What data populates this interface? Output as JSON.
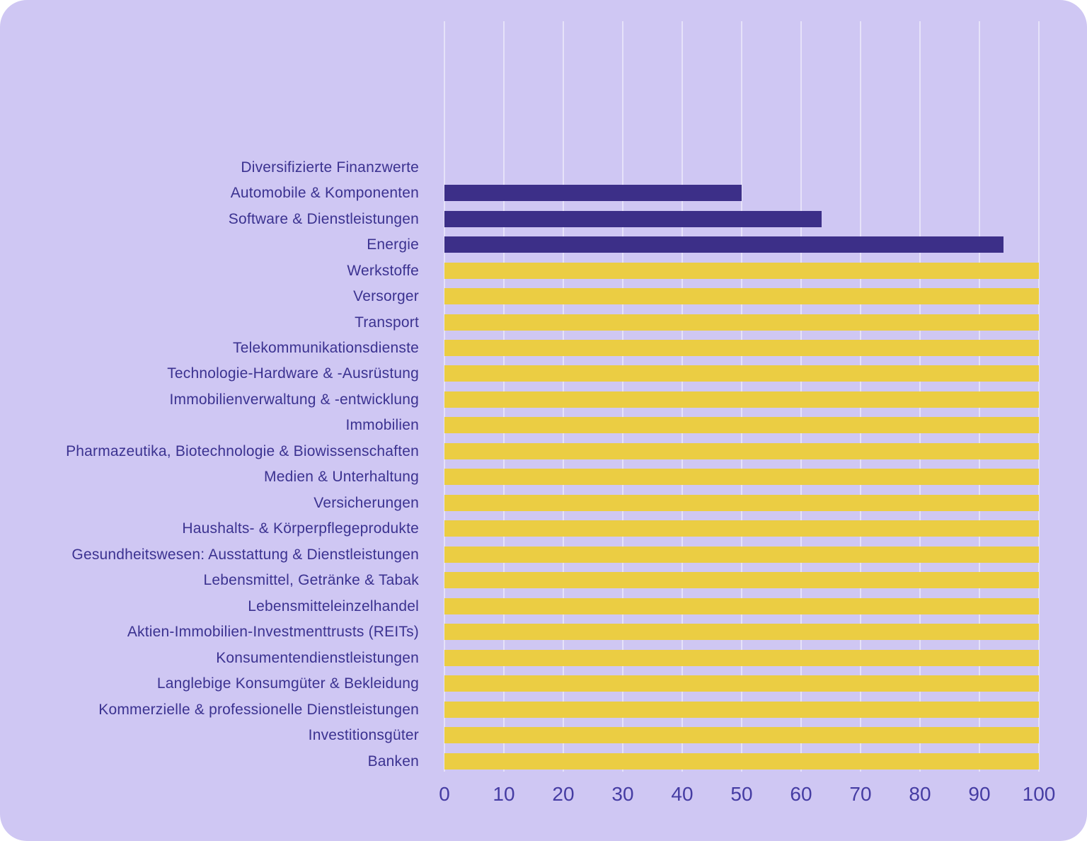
{
  "colors": {
    "page_background": "#FFFFFF",
    "panel_background": "#CFC7F3",
    "gridline": "rgba(255,255,255,0.48)",
    "bar_purple": "#3C2F88",
    "bar_yellow": "#EBCD43",
    "category_label_text": "#3B3290",
    "tick_label_text": "#453CA3"
  },
  "chart_data": {
    "type": "bar",
    "orientation": "horizontal",
    "title": "",
    "xlabel": "",
    "ylabel": "",
    "xlim": [
      0,
      100
    ],
    "x_ticks": [
      "0",
      "10",
      "20",
      "30",
      "40",
      "50",
      "60",
      "70",
      "80",
      "90",
      "100"
    ],
    "grid": true,
    "legend": false,
    "categories": [
      "Diversifizierte Finanzwerte",
      "Automobile & Komponenten",
      "Software & Dienstleistungen",
      "Energie",
      "Werkstoffe",
      "Versorger",
      "Transport",
      "Telekommunikationsdienste",
      "Technologie-Hardware & -Ausrüstung",
      "Immobilienverwaltung & -entwicklung",
      "Immobilien",
      "Pharmazeutika, Biotechnologie & Biowissenschaften",
      "Medien & Unterhaltung",
      "Versicherungen",
      "Haushalts- & Körperpflegeprodukte",
      "Gesundheitswesen: Ausstattung & Dienstleistungen",
      "Lebensmittel, Getränke & Tabak",
      "Lebensmitteleinzelhandel",
      "Aktien-Immobilien-Investmenttrusts (REITs)",
      "Konsumentendienstleistungen",
      "Langlebige Konsumgüter & Bekleidung",
      "Kommerzielle & professionelle Dienstleistungen",
      "Investitionsgüter",
      "Banken"
    ],
    "values": [
      0,
      50,
      63.5,
      94,
      100,
      100,
      100,
      100,
      100,
      100,
      100,
      100,
      100,
      100,
      100,
      100,
      100,
      100,
      100,
      100,
      100,
      100,
      100,
      100
    ],
    "bar_color_keys": [
      "bar_purple",
      "bar_purple",
      "bar_purple",
      "bar_purple",
      "bar_yellow",
      "bar_yellow",
      "bar_yellow",
      "bar_yellow",
      "bar_yellow",
      "bar_yellow",
      "bar_yellow",
      "bar_yellow",
      "bar_yellow",
      "bar_yellow",
      "bar_yellow",
      "bar_yellow",
      "bar_yellow",
      "bar_yellow",
      "bar_yellow",
      "bar_yellow",
      "bar_yellow",
      "bar_yellow",
      "bar_yellow",
      "bar_yellow"
    ]
  }
}
